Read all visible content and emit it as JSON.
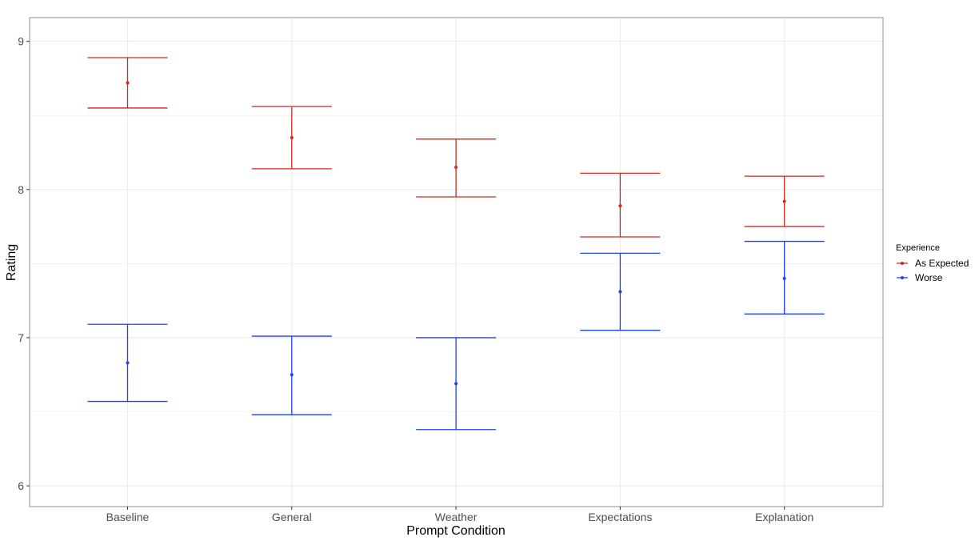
{
  "chart_data": {
    "type": "errorbar",
    "title": "",
    "xlabel": "Prompt Condition",
    "ylabel": "Rating",
    "categories": [
      "Baseline",
      "General",
      "Weather",
      "Expectations",
      "Explanation"
    ],
    "ylim": [
      5.86,
      9.16
    ],
    "yticks": [
      6,
      7,
      8,
      9
    ],
    "grid": true,
    "legend": {
      "title": "Experience",
      "position": "right"
    },
    "series": [
      {
        "name": "As Expected",
        "color": "#cc2a1e",
        "points": [
          {
            "x": "Baseline",
            "y": 8.72,
            "ymin": 8.55,
            "ymax": 8.89
          },
          {
            "x": "General",
            "y": 8.35,
            "ymin": 8.14,
            "ymax": 8.56
          },
          {
            "x": "Weather",
            "y": 8.15,
            "ymin": 7.95,
            "ymax": 8.34
          },
          {
            "x": "Expectations",
            "y": 7.89,
            "ymin": 7.68,
            "ymax": 8.11
          },
          {
            "x": "Explanation",
            "y": 7.92,
            "ymin": 7.75,
            "ymax": 8.09
          }
        ]
      },
      {
        "name": "Worse",
        "color": "#1f3ff5",
        "points": [
          {
            "x": "Baseline",
            "y": 6.83,
            "ymin": 6.57,
            "ymax": 7.09
          },
          {
            "x": "General",
            "y": 6.75,
            "ymin": 6.48,
            "ymax": 7.01
          },
          {
            "x": "Weather",
            "y": 6.69,
            "ymin": 6.38,
            "ymax": 7.0
          },
          {
            "x": "Expectations",
            "y": 7.31,
            "ymin": 7.05,
            "ymax": 7.57
          },
          {
            "x": "Explanation",
            "y": 7.4,
            "ymin": 7.16,
            "ymax": 7.65
          }
        ]
      }
    ]
  }
}
